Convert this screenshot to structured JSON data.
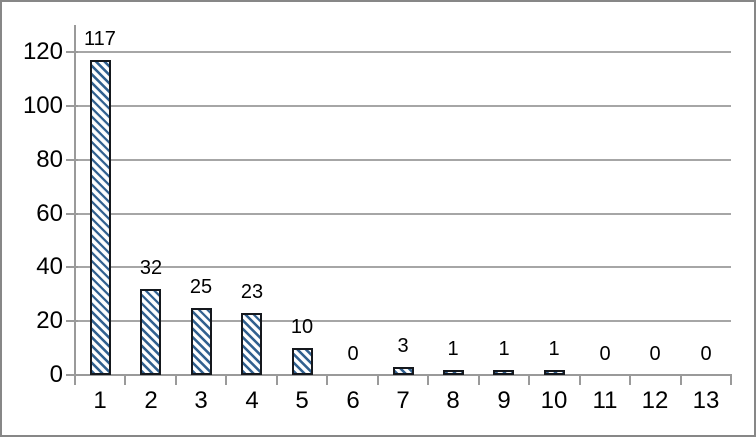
{
  "chart_data": {
    "type": "bar",
    "title": "",
    "xlabel": "",
    "ylabel": "",
    "categories": [
      "1",
      "2",
      "3",
      "4",
      "5",
      "6",
      "7",
      "8",
      "9",
      "10",
      "11",
      "12",
      "13"
    ],
    "values": [
      117,
      32,
      25,
      23,
      10,
      0,
      3,
      1,
      1,
      1,
      0,
      0,
      0
    ],
    "data_labels": [
      "117",
      "32",
      "25",
      "23",
      "10",
      "0",
      "3",
      "1",
      "1",
      "1",
      "0",
      "0",
      "0"
    ],
    "ylim": [
      0,
      120
    ],
    "yticks": [
      0,
      20,
      40,
      60,
      80,
      100,
      120
    ],
    "grid": true,
    "legend": false,
    "style": {
      "bar_hatch": "diagonal-down",
      "bar_stripe_color": "#31608f",
      "bar_fill_color": "#ffffff",
      "bar_border_color": "#15181d",
      "gridline_color": "#a6a6a6",
      "axis_color": "#9a9a9a",
      "text_color": "#000000",
      "frame_border_color": "#878787",
      "background_color": "#ffffff"
    }
  }
}
